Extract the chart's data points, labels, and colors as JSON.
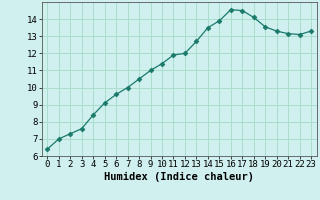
{
  "x": [
    0,
    1,
    2,
    3,
    4,
    5,
    6,
    7,
    8,
    9,
    10,
    11,
    12,
    13,
    14,
    15,
    16,
    17,
    18,
    19,
    20,
    21,
    22,
    23
  ],
  "y": [
    6.4,
    7.0,
    7.3,
    7.6,
    8.4,
    9.1,
    9.6,
    10.0,
    10.5,
    11.0,
    11.4,
    11.9,
    12.0,
    12.7,
    13.5,
    13.9,
    14.55,
    14.5,
    14.1,
    13.55,
    13.3,
    13.15,
    13.1,
    13.3
  ],
  "line_color": "#1a7a6a",
  "marker": "D",
  "marker_size": 2.5,
  "bg_color": "#d0f0f0",
  "grid_color": "#aaddcc",
  "xlabel": "Humidex (Indice chaleur)",
  "ylim": [
    6,
    15
  ],
  "xlim": [
    -0.5,
    23.5
  ],
  "yticks": [
    6,
    7,
    8,
    9,
    10,
    11,
    12,
    13,
    14
  ],
  "xticks": [
    0,
    1,
    2,
    3,
    4,
    5,
    6,
    7,
    8,
    9,
    10,
    11,
    12,
    13,
    14,
    15,
    16,
    17,
    18,
    19,
    20,
    21,
    22,
    23
  ],
  "xlabel_fontsize": 7.5,
  "tick_fontsize": 6.5
}
